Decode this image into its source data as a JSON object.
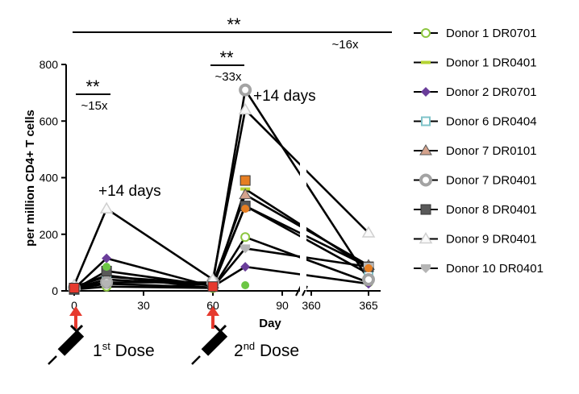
{
  "chart_data": {
    "type": "line",
    "title": "",
    "ylabel": "per million CD4+ T cells",
    "xlabel": "Day",
    "ylim": [
      0,
      800
    ],
    "yticks": [
      "0",
      "200",
      "400",
      "600",
      "800"
    ],
    "xticks": [
      {
        "label": "0",
        "day": 0
      },
      {
        "label": "30",
        "day": 30
      },
      {
        "label": "60",
        "day": 60
      },
      {
        "label": "90",
        "day": 90
      },
      {
        "label": "360",
        "day": 360
      },
      {
        "label": "365",
        "day": 365
      }
    ],
    "x": [
      0,
      14,
      60,
      74,
      365
    ],
    "series": [
      {
        "name": "Donor 1 DR0701",
        "color": "#8cc63f",
        "marker": "circle-open",
        "values": [
          5,
          15,
          10,
          190,
          30
        ]
      },
      {
        "name": "Donor 1 DR0401",
        "color": "#b5d334",
        "marker": "dash",
        "values": [
          12,
          55,
          8,
          360,
          80
        ]
      },
      {
        "name": "Donor 2 DR0701",
        "color": "#6a3d9a",
        "marker": "diamond",
        "values": [
          8,
          115,
          15,
          85,
          25
        ]
      },
      {
        "name": "Donor 6 DR0404",
        "color": "#7fc3c9",
        "marker": "square-open",
        "values": [
          10,
          40,
          20,
          300,
          60
        ]
      },
      {
        "name": "Donor 7 DR0101",
        "color": "#d4a28c",
        "marker": "triangle",
        "values": [
          15,
          50,
          25,
          340,
          90
        ]
      },
      {
        "name": "Donor 7 DR0401",
        "color": "#a3a3a3",
        "marker": "circle-ring",
        "values": [
          10,
          30,
          30,
          710,
          40
        ]
      },
      {
        "name": "Donor 8 DR0401",
        "color": "#595959",
        "marker": "square",
        "values": [
          5,
          70,
          18,
          300,
          85
        ]
      },
      {
        "name": "Donor 9 DR0401",
        "color": "#e8e8e8",
        "marker": "triangle-open",
        "values": [
          20,
          290,
          40,
          640,
          205
        ]
      },
      {
        "name": "Donor 10 DR0401",
        "color": "#b5b5b5",
        "marker": "shield",
        "values": [
          8,
          25,
          12,
          150,
          85
        ]
      }
    ],
    "extra_markers": [
      {
        "day": 0,
        "value": 10,
        "color": "#e63a2e",
        "marker": "square"
      },
      {
        "day": 60,
        "value": 15,
        "color": "#e63a2e",
        "marker": "square"
      },
      {
        "day": 74,
        "value": 390,
        "color": "#e67e22",
        "marker": "square"
      },
      {
        "day": 74,
        "value": 20,
        "color": "#6cc644",
        "marker": "circle"
      },
      {
        "day": 14,
        "value": 85,
        "color": "#6cc644",
        "marker": "circle"
      },
      {
        "day": 74,
        "value": 290,
        "color": "#e67e22",
        "marker": "circle"
      },
      {
        "day": 365,
        "value": 80,
        "color": "#e67e22",
        "marker": "circle"
      }
    ],
    "annotations": {
      "sig_top": "**",
      "fold_top": "~16x",
      "sig_first": "**",
      "fold_first": "~15x",
      "sig_second": "**",
      "fold_second": "~33x",
      "plus_first": "+14 days",
      "plus_second": "+14 days",
      "dose1_main": "1",
      "dose1_sup": "st",
      "dose1_rest": " Dose",
      "dose2_main": "2",
      "dose2_sup": "nd",
      "dose2_rest": " Dose"
    },
    "colors": {
      "axis": "#000000",
      "line": "#000000",
      "arrow": "#e63a2e"
    }
  }
}
